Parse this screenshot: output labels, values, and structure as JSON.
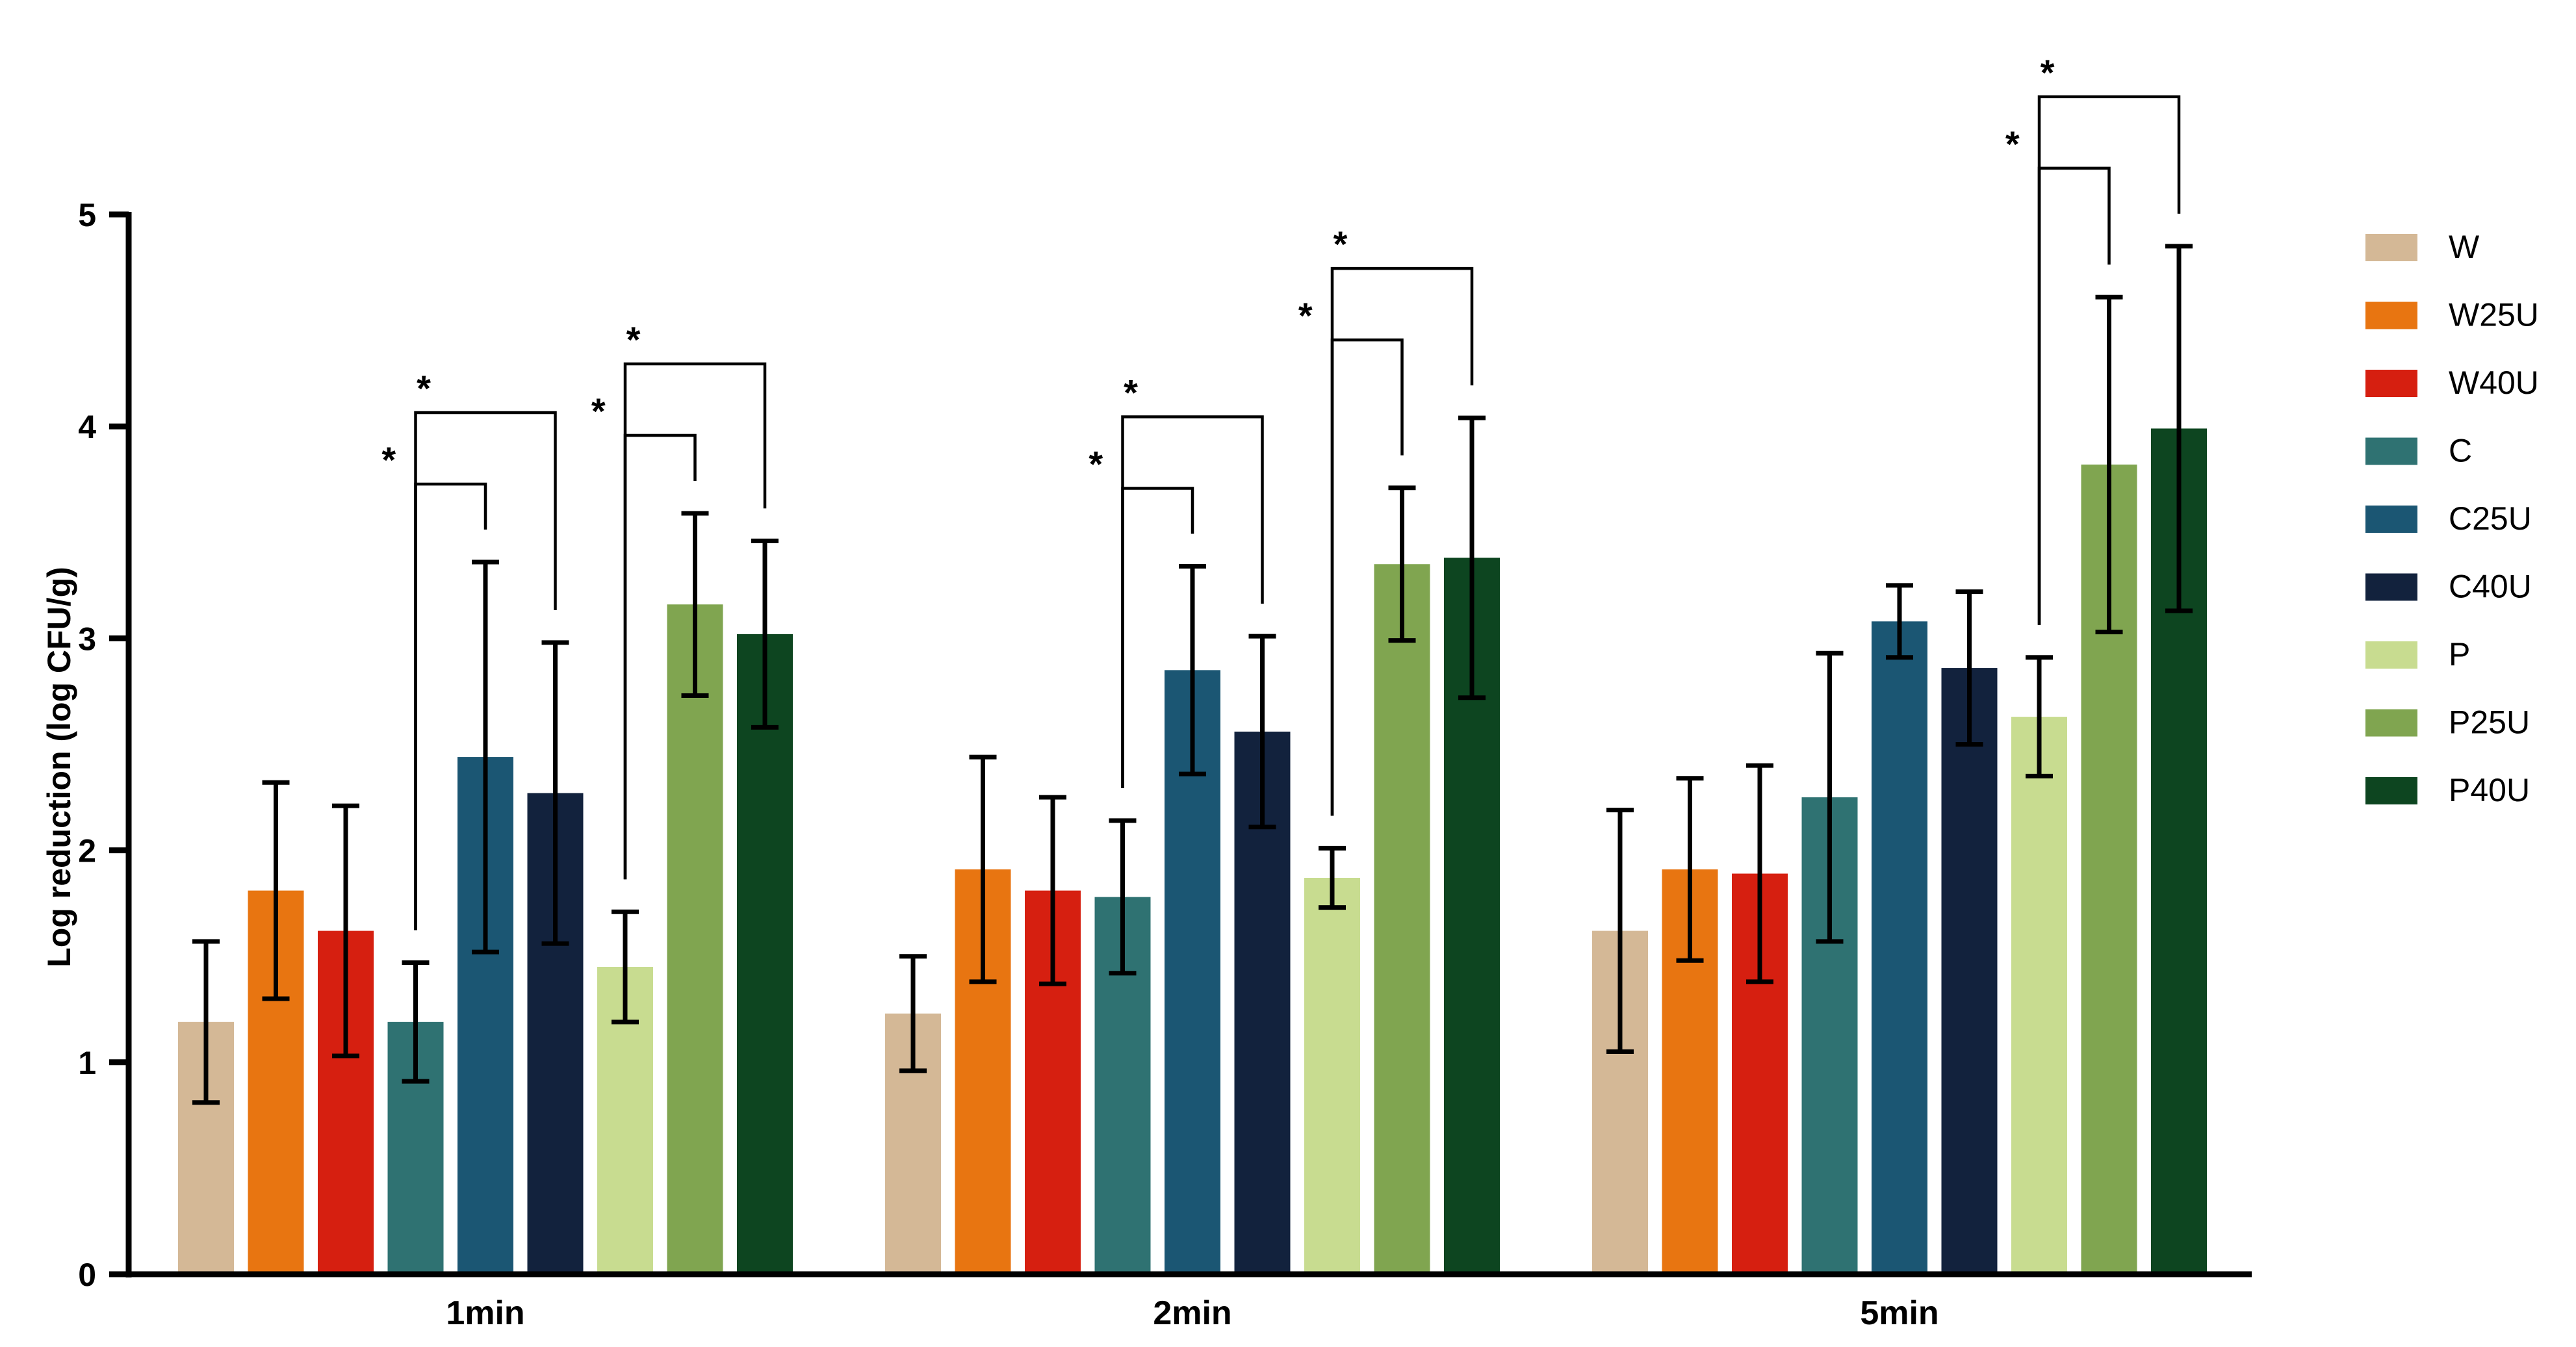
{
  "chart_data": {
    "type": "bar",
    "title": "",
    "xlabel": "",
    "ylabel": "Log reduction (log CFU/g)",
    "ylim": [
      0,
      5
    ],
    "yticks": [
      0,
      1,
      2,
      3,
      4,
      5
    ],
    "categories": [
      "1min",
      "2min",
      "5min"
    ],
    "colors": [
      "#d4b896",
      "#e87511",
      "#d61f10",
      "#2f7272",
      "#1b5673",
      "#12223d",
      "#c8dc90",
      "#80a550",
      "#0d4520"
    ],
    "series": [
      {
        "name": "W",
        "values": [
          1.19,
          1.23,
          1.62
        ],
        "errors": [
          0.38,
          0.27,
          0.57
        ]
      },
      {
        "name": "W25U",
        "values": [
          1.81,
          1.91,
          1.91
        ],
        "errors": [
          0.51,
          0.53,
          0.43
        ]
      },
      {
        "name": "W40U",
        "values": [
          1.62,
          1.81,
          1.89
        ],
        "errors": [
          0.59,
          0.44,
          0.51
        ]
      },
      {
        "name": "C",
        "values": [
          1.19,
          1.78,
          2.25
        ],
        "errors": [
          0.28,
          0.36,
          0.68
        ]
      },
      {
        "name": "C25U",
        "values": [
          2.44,
          2.85,
          3.08
        ],
        "errors": [
          0.92,
          0.49,
          0.17
        ]
      },
      {
        "name": "C40U",
        "values": [
          2.27,
          2.56,
          2.86
        ],
        "errors": [
          0.71,
          0.45,
          0.36
        ]
      },
      {
        "name": "P",
        "values": [
          1.45,
          1.87,
          2.63
        ],
        "errors": [
          0.26,
          0.14,
          0.28
        ]
      },
      {
        "name": "P25U",
        "values": [
          3.16,
          3.35,
          3.82
        ],
        "errors": [
          0.43,
          0.36,
          0.79
        ]
      },
      {
        "name": "P40U",
        "values": [
          3.02,
          3.38,
          3.99
        ],
        "errors": [
          0.44,
          0.66,
          0.86
        ]
      }
    ],
    "significance": [
      {
        "category": "1min",
        "from": "C",
        "to": "C25U",
        "label": "*"
      },
      {
        "category": "1min",
        "from": "C",
        "to": "C40U",
        "label": "*"
      },
      {
        "category": "1min",
        "from": "P",
        "to": "P25U",
        "label": "*"
      },
      {
        "category": "1min",
        "from": "P",
        "to": "P40U",
        "label": "*"
      },
      {
        "category": "2min",
        "from": "C",
        "to": "C25U",
        "label": "*"
      },
      {
        "category": "2min",
        "from": "C",
        "to": "C40U",
        "label": "*"
      },
      {
        "category": "2min",
        "from": "P",
        "to": "P25U",
        "label": "*"
      },
      {
        "category": "2min",
        "from": "P",
        "to": "P40U",
        "label": "*"
      },
      {
        "category": "5min",
        "from": "P",
        "to": "P25U",
        "label": "*"
      },
      {
        "category": "5min",
        "from": "P",
        "to": "P40U",
        "label": "*"
      }
    ],
    "legend": {
      "position": "right",
      "entries": [
        "W",
        "W25U",
        "W40U",
        "C",
        "C25U",
        "C40U",
        "P",
        "P25U",
        "P40U"
      ]
    }
  }
}
